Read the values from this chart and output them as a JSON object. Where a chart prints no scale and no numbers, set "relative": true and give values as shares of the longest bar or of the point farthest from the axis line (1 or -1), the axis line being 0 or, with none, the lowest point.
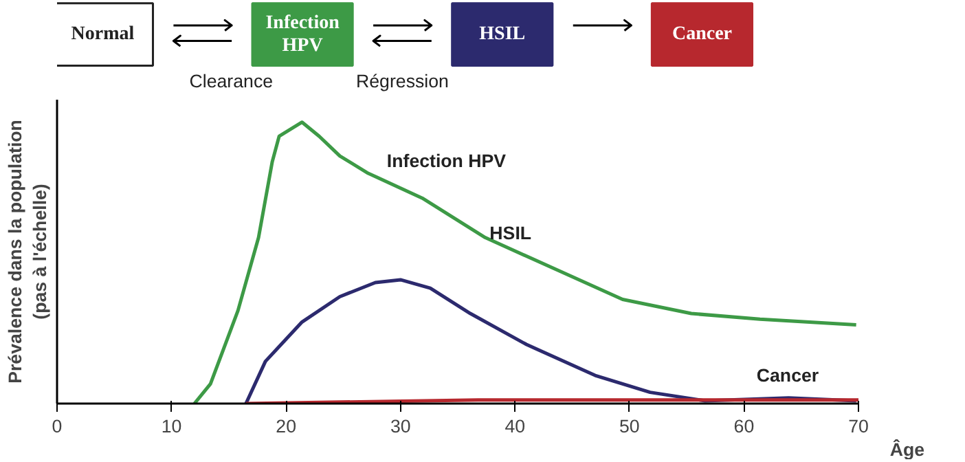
{
  "chart_data": [
    {
      "type": "other",
      "categories": [
        "Normal",
        "Infection\nHPV",
        "HSIL",
        "Cancer"
      ],
      "colors": [
        "#ffffff",
        "#3d9a46",
        "#2c2a6e",
        "#b7282e"
      ],
      "annotations": [
        "Clearance",
        "Régression"
      ]
    },
    {
      "type": "line",
      "xlabel": "Âge",
      "ylabel": "Prévalence dans la population\n(pas à l'échelle)",
      "relative": true,
      "xlim": [
        0,
        70
      ],
      "xticks": [
        0,
        10,
        20,
        30,
        40,
        50,
        60,
        70
      ],
      "grid": false,
      "marker": "none",
      "line_style": "solid",
      "series": [
        {
          "color": "#3d9a46",
          "x": [
            12,
            13.4,
            15.8,
            17.6,
            18.8,
            19.4,
            21.4,
            22.9,
            24.7,
            27.1,
            31.9,
            37.4,
            43.4,
            49.4,
            55.4,
            61.4,
            69.8
          ],
          "values": [
            0,
            0.07,
            0.33,
            0.59,
            0.86,
            0.95,
            1,
            0.95,
            0.88,
            0.82,
            0.73,
            0.59,
            0.48,
            0.37,
            0.32,
            0.3,
            0.28
          ]
        },
        {
          "color": "#2c2a6e",
          "x": [
            16.5,
            18.2,
            21.4,
            24.7,
            27.8,
            30,
            32.6,
            36.1,
            41,
            47,
            51.8,
            56.6,
            63.9,
            69.8
          ],
          "values": [
            0,
            0.15,
            0.29,
            0.38,
            0.43,
            0.44,
            0.41,
            0.32,
            0.21,
            0.1,
            0.04,
            0.01,
            0.02,
            0.01
          ]
        },
        {
          "color": "#b7282e",
          "x": [
            16.5,
            36.8,
            70
          ],
          "values": [
            0,
            0.013,
            0.013
          ]
        }
      ],
      "annotations": [
        "Infection HPV",
        "HSIL",
        "Cancer"
      ]
    }
  ]
}
